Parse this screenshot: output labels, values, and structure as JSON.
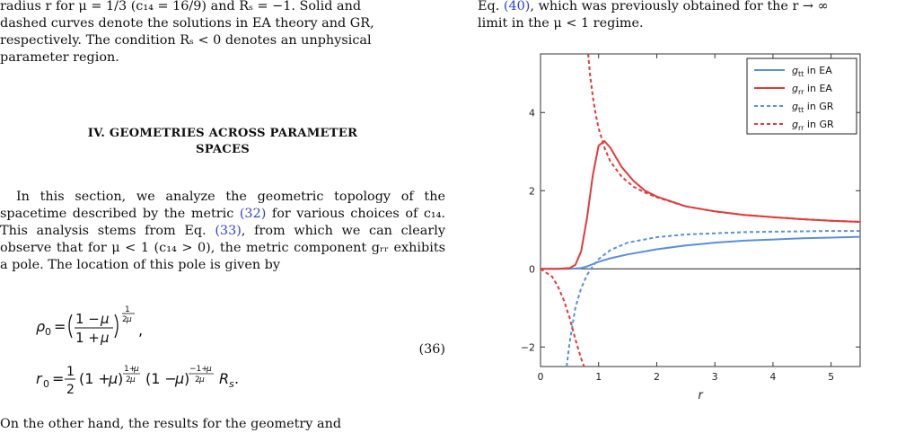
{
  "left_column": {
    "caption_lines": [
      "radius r for μ = 1/3 (c₁₄ = 16/9) and Rₛ = −1. Solid and",
      "dashed curves denote the solutions in EA theory and GR,",
      "respectively. The condition Rₛ < 0 denotes an unphysical",
      "parameter region."
    ],
    "section_heading_line1": "IV.   GEOMETRIES ACROSS PARAMETER",
    "section_heading_line2": "SPACES",
    "para1_a": "In this section, we analyze the geometric topology of",
    "para1_b": "the spacetime described by the metric ",
    "para1_ref1": "(32)",
    "para1_c": " for various",
    "para1_d": "choices of c₁₄. This analysis stems from Eq. ",
    "para1_ref2": "(33)",
    "para1_e": ", from",
    "para1_f": "which we can clearly observe that for μ < 1 (c₁₄ > 0),",
    "para1_g": "the metric component gᵣᵣ exhibits a pole. The location",
    "para1_h": "of this pole is given by",
    "eq_number": "(36)",
    "cut_line": "On the other hand, the results for the geometry and"
  },
  "right_column": {
    "line1_a": "Eq. ",
    "line1_ref": "(40)",
    "line1_b": ", which was previously obtained for the r → ∞",
    "line2": "limit in the μ < 1 regime."
  },
  "chart_data": {
    "type": "line",
    "xlabel": "r",
    "ylabel": "",
    "xlim": [
      0,
      5.5
    ],
    "ylim": [
      -2.5,
      5.5
    ],
    "xticks": [
      0,
      1,
      2,
      3,
      4,
      5
    ],
    "yticks": [
      -2,
      0,
      2,
      4
    ],
    "legend_position": "top-right",
    "zero_line": true,
    "series": [
      {
        "name": "gtt in EA",
        "color": "#5b8fd9",
        "dash": false,
        "x": [
          0.0,
          0.3,
          0.5,
          0.7,
          0.8,
          0.9,
          1.0,
          1.2,
          1.5,
          2.0,
          2.5,
          3.0,
          3.5,
          4.0,
          4.5,
          5.0,
          5.5
        ],
        "y": [
          0.0,
          0.0,
          0.0,
          0.02,
          0.06,
          0.12,
          0.18,
          0.27,
          0.37,
          0.5,
          0.6,
          0.67,
          0.72,
          0.75,
          0.78,
          0.8,
          0.82
        ]
      },
      {
        "name": "grr in EA",
        "color": "#e03b3b",
        "dash": false,
        "x": [
          0.0,
          0.3,
          0.5,
          0.6,
          0.7,
          0.8,
          0.9,
          1.0,
          1.1,
          1.2,
          1.4,
          1.6,
          1.8,
          2.0,
          2.5,
          3.0,
          3.5,
          4.0,
          4.5,
          5.0,
          5.5
        ],
        "y": [
          0.0,
          0.0,
          0.02,
          0.1,
          0.45,
          1.3,
          2.4,
          3.15,
          3.27,
          3.1,
          2.6,
          2.25,
          2.0,
          1.85,
          1.6,
          1.47,
          1.38,
          1.32,
          1.27,
          1.23,
          1.2
        ]
      },
      {
        "name": "gtt in GR",
        "color": "#5b8fd9",
        "dash": true,
        "x": [
          0.45,
          0.5,
          0.6,
          0.7,
          0.8,
          0.9,
          1.0,
          1.2,
          1.5,
          2.0,
          2.5,
          3.0,
          3.5,
          4.0,
          4.5,
          5.0,
          5.5
        ],
        "y": [
          -2.5,
          -1.89,
          -1.0,
          -0.49,
          -0.16,
          0.07,
          0.25,
          0.48,
          0.67,
          0.81,
          0.88,
          0.91,
          0.94,
          0.95,
          0.96,
          0.97,
          0.97
        ]
      },
      {
        "name": "grr in GR",
        "color": "#e03b3b",
        "dash": true,
        "x": [
          0.0,
          0.2,
          0.3,
          0.4,
          0.5,
          0.6,
          0.7,
          0.75
        ],
        "y": [
          0.0,
          -0.2,
          -0.45,
          -0.8,
          -1.25,
          -1.8,
          -2.3,
          -2.5
        ]
      },
      {
        "name": "grr in GR",
        "color": "#e03b3b",
        "dash": true,
        "x": [
          0.82,
          0.85,
          0.9,
          0.95,
          1.0,
          1.1,
          1.2,
          1.4,
          1.6,
          1.8,
          2.0,
          2.5,
          3.0,
          3.5,
          4.0,
          4.5,
          5.0,
          5.5
        ],
        "y": [
          5.5,
          5.0,
          4.4,
          3.95,
          3.6,
          3.1,
          2.75,
          2.35,
          2.1,
          1.95,
          1.83,
          1.6,
          1.47,
          1.38,
          1.32,
          1.27,
          1.23,
          1.2
        ]
      }
    ],
    "legend": [
      {
        "label_main": "g",
        "label_sub": "tt",
        "label_rest": " in EA",
        "color": "#5b8fd9",
        "dash": false
      },
      {
        "label_main": "g",
        "label_sub": "rr",
        "label_rest": " in EA",
        "color": "#e03b3b",
        "dash": false
      },
      {
        "label_main": "g",
        "label_sub": "tt",
        "label_rest": " in GR",
        "color": "#5b8fd9",
        "dash": true
      },
      {
        "label_main": "g",
        "label_sub": "rr",
        "label_rest": " in GR",
        "color": "#e03b3b",
        "dash": true
      }
    ]
  }
}
